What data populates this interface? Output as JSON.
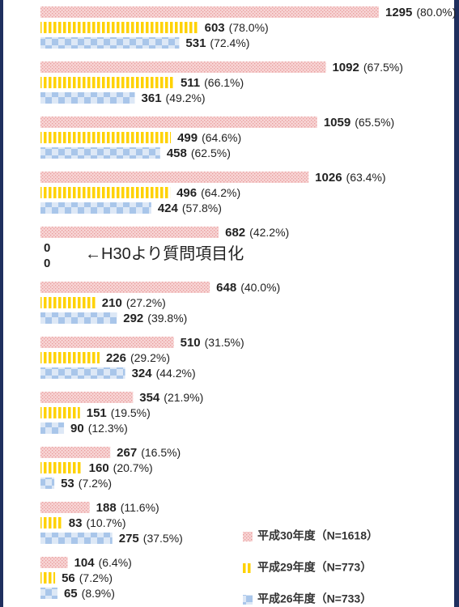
{
  "chart_data": {
    "type": "bar",
    "orientation": "horizontal",
    "annotation": "←H30より質問項目化",
    "annotation_group": 4,
    "series": [
      {
        "name": "平成30年度（N=1618）",
        "color": "#e89a9a",
        "pattern": "dots",
        "values": [
          1295,
          1092,
          1059,
          1026,
          682,
          648,
          510,
          354,
          267,
          188,
          104
        ],
        "share_labels": [
          "(80.0%)",
          "(67.5%)",
          "(65.5%)",
          "(63.4%)",
          "(42.2%)",
          "(40.0%)",
          "(31.5%)",
          "(21.9%)",
          "(16.5%)",
          "(11.6%)",
          "(6.4%)"
        ]
      },
      {
        "name": "平成29年度（N=773）",
        "color": "#ffd200",
        "pattern": "stripes",
        "values": [
          603,
          511,
          499,
          496,
          0,
          210,
          226,
          151,
          160,
          83,
          56
        ],
        "share_labels": [
          "(78.0%)",
          "(66.1%)",
          "(64.6%)",
          "(64.2%)",
          null,
          "(27.2%)",
          "(29.2%)",
          "(19.5%)",
          "(20.7%)",
          "(10.7%)",
          "(7.2%)"
        ]
      },
      {
        "name": "平成26年度（N=733）",
        "color": "#a9c6ea",
        "pattern": "checker",
        "values": [
          531,
          361,
          458,
          424,
          0,
          292,
          324,
          90,
          53,
          275,
          65
        ],
        "share_labels": [
          "(72.4%)",
          "(49.2%)",
          "(62.5%)",
          "(57.8%)",
          null,
          "(39.8%)",
          "(44.2%)",
          "(12.3%)",
          "(7.2%)",
          "(37.5%)",
          "(8.9%)"
        ]
      }
    ]
  }
}
